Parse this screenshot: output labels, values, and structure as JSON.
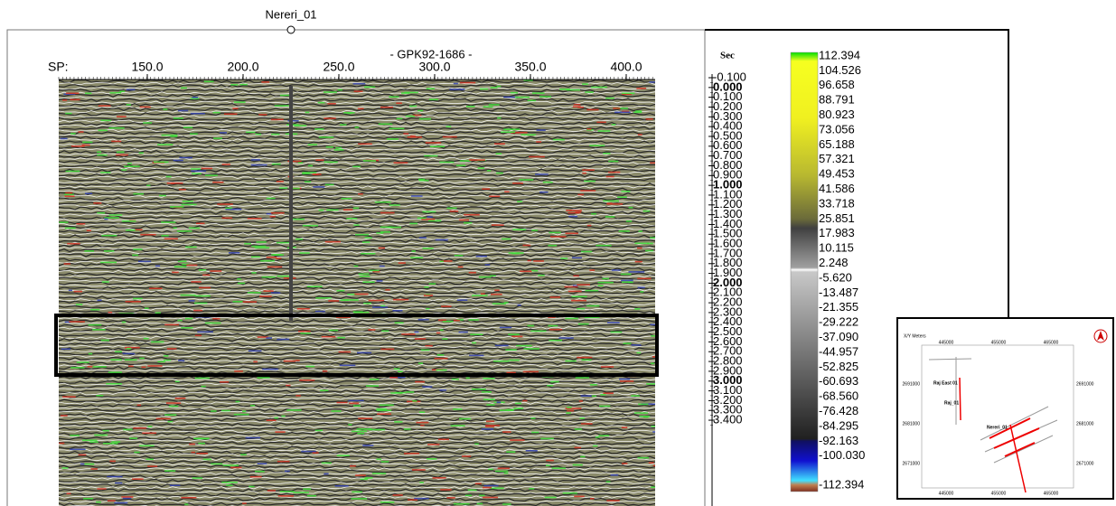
{
  "well": {
    "name": "Nereri_01"
  },
  "section": {
    "line_name": "- GPK92-1686 -",
    "sp_label": "SP:",
    "sp_ticks": [
      "150.0",
      "200.0",
      "250.0",
      "300.0",
      "350.0",
      "400.0"
    ]
  },
  "time_axis": {
    "unit": "Sec",
    "ticks": [
      "-0.100",
      "0.000",
      "0.100",
      "0.200",
      "0.300",
      "0.400",
      "0.500",
      "0.600",
      "0.700",
      "0.800",
      "0.900",
      "1.000",
      "1.100",
      "1.200",
      "1.300",
      "1.400",
      "1.500",
      "1.600",
      "1.700",
      "1.800",
      "1.900",
      "2.000",
      "2.100",
      "2.200",
      "2.300",
      "2.400",
      "2.500",
      "2.600",
      "2.700",
      "2.800",
      "2.900",
      "3.000",
      "3.100",
      "3.200",
      "3.300",
      "3.400"
    ]
  },
  "colorbar": {
    "labels": [
      "112.394",
      "104.526",
      "96.658",
      "88.791",
      "80.923",
      "73.056",
      "65.188",
      "57.321",
      "49.453",
      "41.586",
      "33.718",
      "25.851",
      "17.983",
      "10.115",
      "2.248",
      "-5.620",
      "-13.487",
      "-21.355",
      "-29.222",
      "-37.090",
      "-44.957",
      "-52.825",
      "-60.693",
      "-68.560",
      "-76.428",
      "-84.295",
      "-92.163",
      "-100.030",
      "-112.394"
    ]
  },
  "inset_map": {
    "axis_title": "X/Y Meters",
    "x_ticks": [
      "445000",
      "455000",
      "465000"
    ],
    "y_ticks": [
      "2691000",
      "2681000",
      "2671000"
    ],
    "wells": [
      "Raj East 01",
      "Raj_01",
      "Nereri_01"
    ]
  }
}
